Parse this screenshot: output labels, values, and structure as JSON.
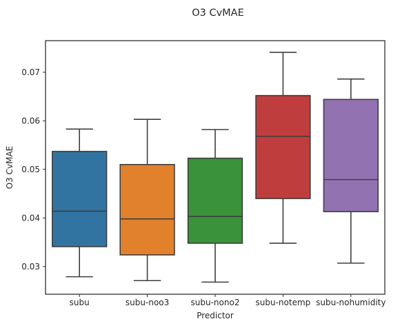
{
  "chart_data": {
    "type": "box",
    "title": "O3 CvMAE",
    "xlabel": "Predictor",
    "ylabel": "O3 CvMAE",
    "ylim": [
      0.0243,
      0.0765
    ],
    "yticks": [
      0.03,
      0.04,
      0.05,
      0.06,
      0.07
    ],
    "ytick_labels": [
      "0.03",
      "0.04",
      "0.05",
      "0.06",
      "0.07"
    ],
    "grid": false,
    "categories": [
      "subu",
      "subu-noo3",
      "subu-nono2",
      "subu-notemp",
      "subu-nohumidity"
    ],
    "colors": [
      "#3274a1",
      "#e1812c",
      "#3a923a",
      "#c03d3e",
      "#9372b2"
    ],
    "line_color": "#3d3d3d",
    "boxes": [
      {
        "whisker_low": 0.0279,
        "q1": 0.0341,
        "median": 0.0414,
        "q3": 0.0537,
        "whisker_high": 0.0583
      },
      {
        "whisker_low": 0.0271,
        "q1": 0.0324,
        "median": 0.0398,
        "q3": 0.051,
        "whisker_high": 0.0603
      },
      {
        "whisker_low": 0.0268,
        "q1": 0.0348,
        "median": 0.0403,
        "q3": 0.0523,
        "whisker_high": 0.0582
      },
      {
        "whisker_low": 0.0348,
        "q1": 0.044,
        "median": 0.0568,
        "q3": 0.0652,
        "whisker_high": 0.0741
      },
      {
        "whisker_low": 0.0307,
        "q1": 0.0413,
        "median": 0.0479,
        "q3": 0.0644,
        "whisker_high": 0.0686
      }
    ]
  }
}
